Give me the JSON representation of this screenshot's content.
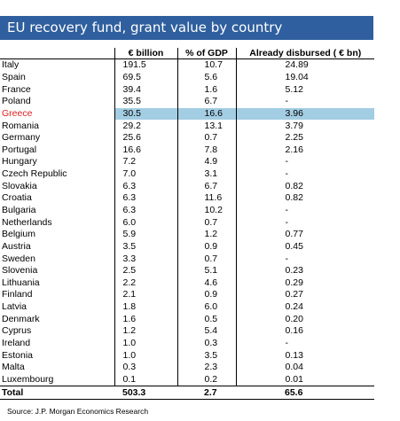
{
  "title": "EU recovery fund, grant value by country",
  "headers": [
    "",
    "€ billion",
    "% of GDP",
    "Already disbursed ( € bn)"
  ],
  "highlight_row": "Greece",
  "highlight_color": "#a3cde3",
  "title_bg": "#2f5f9e",
  "rows": [
    {
      "country": "Italy",
      "billion": "191.5",
      "gdp": "10.7",
      "disbursed": "24.89"
    },
    {
      "country": "Spain",
      "billion": "69.5",
      "gdp": "5.6",
      "disbursed": "19.04"
    },
    {
      "country": "France",
      "billion": "39.4",
      "gdp": "1.6",
      "disbursed": "5.12"
    },
    {
      "country": "Poland",
      "billion": "35.5",
      "gdp": "6.7",
      "disbursed": "-"
    },
    {
      "country": "Greece",
      "billion": "30.5",
      "gdp": "16.6",
      "disbursed": "3.96"
    },
    {
      "country": "Romania",
      "billion": "29.2",
      "gdp": "13.1",
      "disbursed": "3.79"
    },
    {
      "country": "Germany",
      "billion": "25.6",
      "gdp": "0.7",
      "disbursed": "2.25"
    },
    {
      "country": "Portugal",
      "billion": "16.6",
      "gdp": "7.8",
      "disbursed": "2.16"
    },
    {
      "country": "Hungary",
      "billion": "7.2",
      "gdp": "4.9",
      "disbursed": "-"
    },
    {
      "country": "Czech Republic",
      "billion": "7.0",
      "gdp": "3.1",
      "disbursed": "-"
    },
    {
      "country": "Slovakia",
      "billion": "6.3",
      "gdp": "6.7",
      "disbursed": "0.82"
    },
    {
      "country": "Croatia",
      "billion": "6.3",
      "gdp": "11.6",
      "disbursed": "0.82"
    },
    {
      "country": "Bulgaria",
      "billion": "6.3",
      "gdp": "10.2",
      "disbursed": "-"
    },
    {
      "country": "Netherlands",
      "billion": "6.0",
      "gdp": "0.7",
      "disbursed": "-"
    },
    {
      "country": "Belgium",
      "billion": "5.9",
      "gdp": "1.2",
      "disbursed": "0.77"
    },
    {
      "country": "Austria",
      "billion": "3.5",
      "gdp": "0.9",
      "disbursed": "0.45"
    },
    {
      "country": "Sweden",
      "billion": "3.3",
      "gdp": "0.7",
      "disbursed": "-"
    },
    {
      "country": "Slovenia",
      "billion": "2.5",
      "gdp": "5.1",
      "disbursed": "0.23"
    },
    {
      "country": "Lithuania",
      "billion": "2.2",
      "gdp": "4.6",
      "disbursed": "0.29"
    },
    {
      "country": "Finland",
      "billion": "2.1",
      "gdp": "0.9",
      "disbursed": "0.27"
    },
    {
      "country": "Latvia",
      "billion": "1.8",
      "gdp": "6.0",
      "disbursed": "0.24"
    },
    {
      "country": "Denmark",
      "billion": "1.6",
      "gdp": "0.5",
      "disbursed": "0.20"
    },
    {
      "country": "Cyprus",
      "billion": "1.2",
      "gdp": "5.4",
      "disbursed": "0.16"
    },
    {
      "country": "Ireland",
      "billion": "1.0",
      "gdp": "0.3",
      "disbursed": "-"
    },
    {
      "country": "Estonia",
      "billion": "1.0",
      "gdp": "3.5",
      "disbursed": "0.13"
    },
    {
      "country": "Malta",
      "billion": "0.3",
      "gdp": "2.3",
      "disbursed": "0.04"
    },
    {
      "country": "Luxembourg",
      "billion": "0.1",
      "gdp": "0.2",
      "disbursed": "0.01"
    }
  ],
  "total": {
    "country": "Total",
    "billion": "503.3",
    "gdp": "2.7",
    "disbursed": "65.6"
  },
  "source": "Source: J.P. Morgan Economics Research"
}
